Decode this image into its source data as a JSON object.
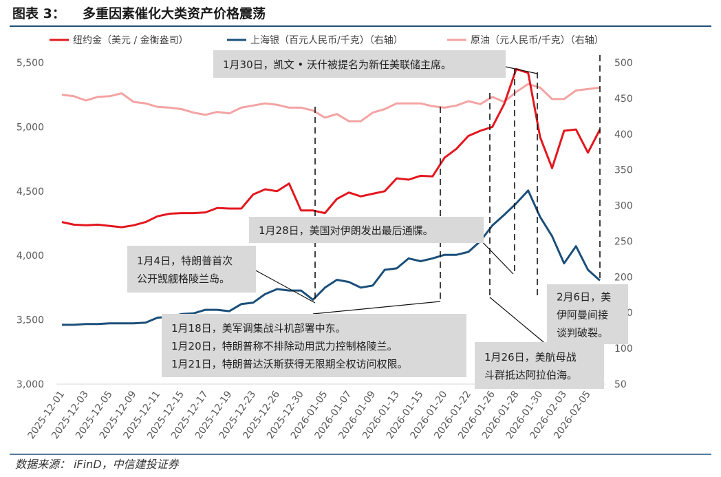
{
  "chart_data": {
    "type": "line",
    "figure_label": "图表 3：",
    "title": "多重因素催化大类资产价格震荡",
    "source": "数据来源： iFinD，中信建投证券",
    "legend": "top",
    "categories": [
      "2025-12-01",
      null,
      "2025-12-03",
      null,
      "2025-12-05",
      null,
      "2025-12-09",
      null,
      "2025-12-11",
      null,
      "2025-12-15",
      null,
      "2025-12-17",
      null,
      "2025-12-19",
      null,
      "2025-12-23",
      null,
      "2025-12-26",
      null,
      "2025-12-30",
      null,
      "2026-01-05",
      null,
      "2026-01-07",
      null,
      "2026-01-09",
      null,
      "2026-01-13",
      null,
      "2026-01-15",
      null,
      "2026-01-20",
      null,
      "2026-01-22",
      null,
      "2026-01-26",
      null,
      "2026-01-28",
      null,
      "2026-01-30",
      null,
      "2026-02-03",
      null,
      "2026-02-05",
      null
    ],
    "ylim": [
      3000,
      5500
    ],
    "yticks": [
      {
        "value": 3000,
        "label": "3,000"
      },
      {
        "value": 3500,
        "label": "3,500"
      },
      {
        "value": 4000,
        "label": "4,000"
      },
      {
        "value": 4500,
        "label": "4,500"
      },
      {
        "value": 5000,
        "label": "5,000"
      },
      {
        "value": 5500,
        "label": "5,500"
      }
    ],
    "y2lim": [
      50,
      500
    ],
    "y2ticks": [
      50,
      100,
      150,
      200,
      250,
      300,
      350,
      400,
      450,
      500
    ],
    "series": [
      {
        "name": "纽约金（美元 / 金衡盎司）",
        "color": "#e3171e",
        "values": [
          4260,
          4240,
          4235,
          4240,
          4230,
          4220,
          4235,
          4260,
          4305,
          4325,
          4330,
          4330,
          4335,
          4370,
          4365,
          4365,
          4475,
          4515,
          4500,
          4560,
          4350,
          4350,
          4330,
          4440,
          4490,
          4460,
          4480,
          4500,
          4600,
          4590,
          4620,
          4615,
          4760,
          4830,
          4930,
          4970,
          5000,
          5180,
          5450,
          5420,
          4920,
          4680,
          4970,
          4980,
          4800,
          4980
        ]
      },
      {
        "name": "上海银（百元人民币/千克）（右轴）",
        "color": "#1b4f7a",
        "axis": "y2",
        "values": [
          133,
          133,
          134,
          134,
          135,
          135,
          135,
          136,
          143,
          144,
          148,
          149,
          154,
          154,
          152,
          162,
          164,
          176,
          183,
          181,
          181,
          168,
          185,
          196,
          193,
          185,
          188,
          210,
          212,
          226,
          222,
          226,
          231,
          231,
          235,
          250,
          272,
          287,
          303,
          321,
          284,
          257,
          219,
          243,
          210,
          195
        ]
      },
      {
        "name": "原油（元人民币/千克）（右轴）",
        "color": "#f4a3a3",
        "axis": "y2",
        "values": [
          455,
          453,
          447,
          452,
          453,
          457,
          445,
          443,
          438,
          437,
          435,
          430,
          427,
          431,
          429,
          437,
          440,
          443,
          441,
          437,
          437,
          433,
          423,
          428,
          418,
          418,
          430,
          435,
          443,
          443,
          443,
          439,
          437,
          440,
          446,
          442,
          452,
          445,
          459,
          470,
          465,
          449,
          449,
          461,
          463,
          465
        ]
      }
    ],
    "annotations": [
      {
        "lines": [
          "1月30日，凯文 • 沃什被提名为新任美联储主席。"
        ]
      },
      {
        "lines": [
          "1月28日，美国对伊朗发出最后通牒。"
        ]
      },
      {
        "lines": [
          "1月4日，特朗普首次",
          "公开觊觎格陵兰岛。"
        ]
      },
      {
        "lines": [
          "1月18日，美军调集战斗机部署中东。",
          "1月20日，特朗普称不排除动用武力控制格陵兰。",
          "1月21日，特朗普达沃斯获得无限期全权访问权限。"
        ]
      },
      {
        "lines": [
          "1月26日，美航母战",
          "斗群抵达阿拉伯海。"
        ]
      },
      {
        "lines": [
          "2月6日，美",
          "伊阿曼间接",
          "谈判破裂。"
        ]
      }
    ]
  }
}
